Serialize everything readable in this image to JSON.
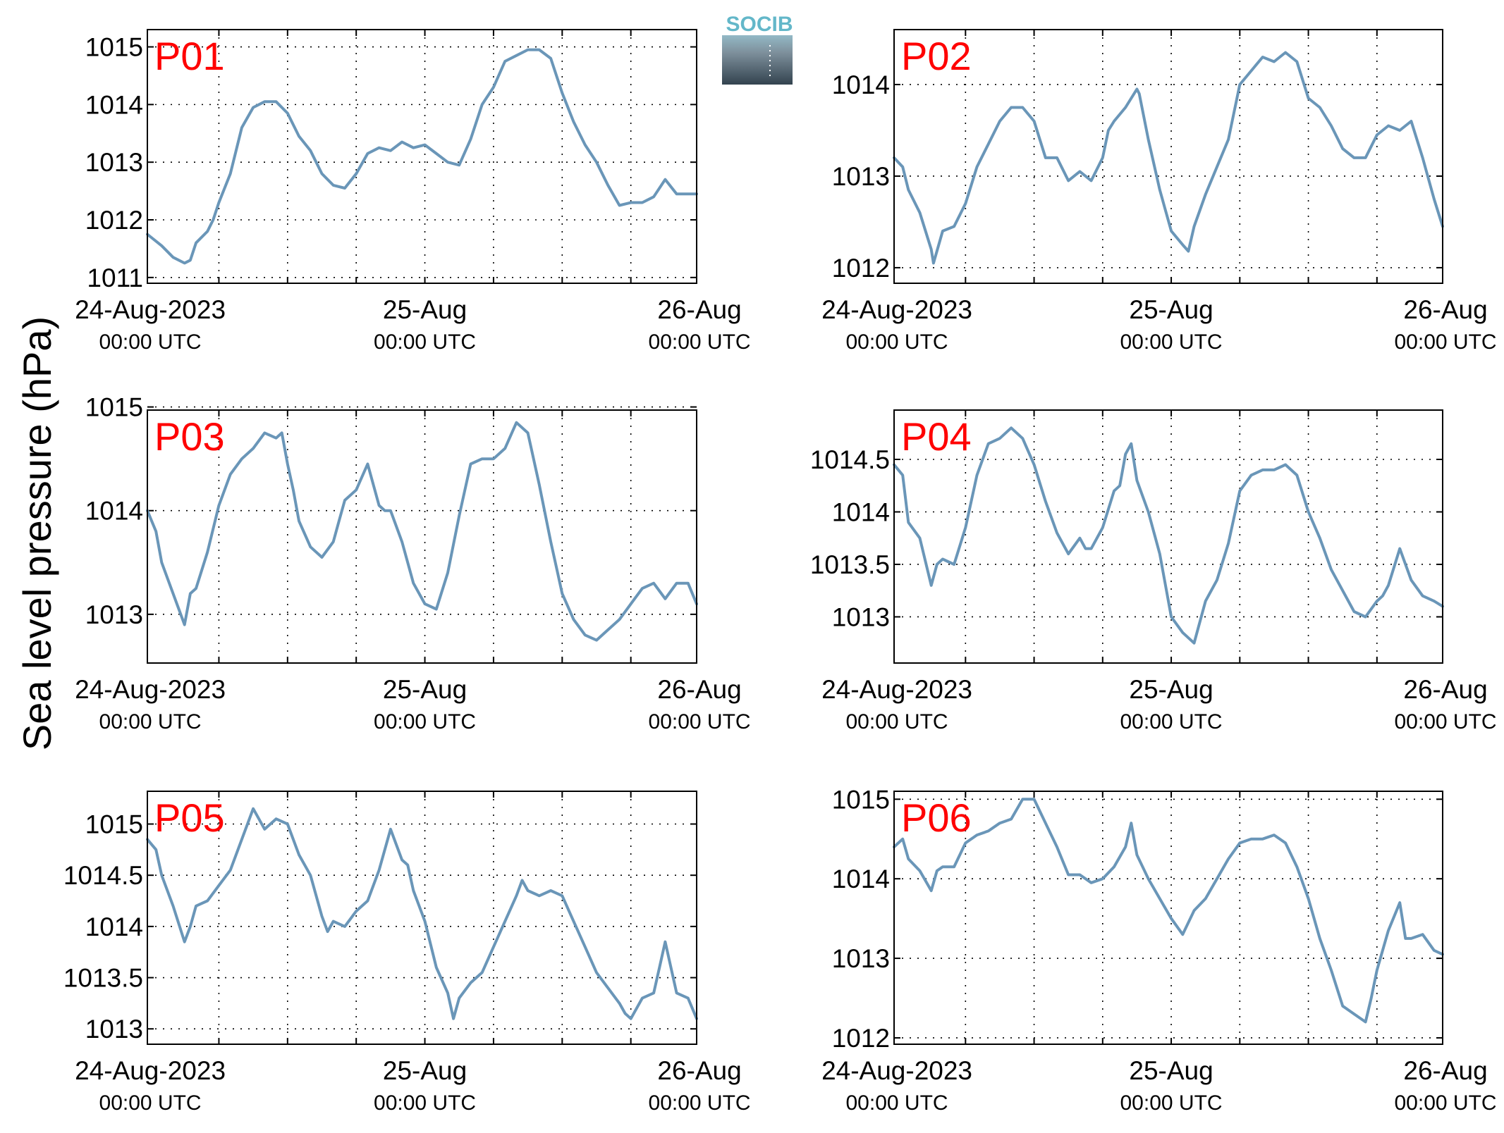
{
  "figure": {
    "ylabel": "Sea level pressure (hPa)",
    "title_color": "#ff0000",
    "series_color": "#6a96b8",
    "logo": {
      "text": "SOCIB",
      "text_color": "#63b7c9"
    }
  },
  "chart_data": [
    {
      "type": "line",
      "title": "P01",
      "ylim": [
        1010.9,
        1015.3
      ],
      "yticks": [
        1011,
        1012,
        1013,
        1014,
        1015
      ],
      "ytick_labels": [
        "1011",
        "1012",
        "1013",
        "1014",
        "1015"
      ],
      "xlim": [
        -0.25,
        47.75
      ],
      "xticks": [
        0,
        24,
        48
      ],
      "xtick_dates": [
        "24-Aug-2023",
        "25-Aug",
        "26-Aug"
      ],
      "xtick_times": [
        "00:00 UTC",
        "00:00 UTC",
        "00:00 UTC"
      ],
      "grid": true,
      "x": [
        -0.25,
        1,
        2,
        3,
        3.5,
        4,
        5,
        5.5,
        6,
        7,
        8,
        9,
        10,
        11,
        12,
        13,
        14,
        15,
        16,
        17,
        18,
        19,
        20,
        21,
        22,
        23,
        24,
        25,
        26,
        27,
        28,
        29,
        30,
        31,
        32,
        33,
        34,
        35,
        36,
        37,
        38,
        39,
        40,
        41,
        42,
        43,
        44,
        45,
        46,
        47,
        47.75
      ],
      "y": [
        1011.75,
        1011.55,
        1011.35,
        1011.25,
        1011.3,
        1011.6,
        1011.8,
        1012.0,
        1012.3,
        1012.8,
        1013.6,
        1013.95,
        1014.05,
        1014.05,
        1013.85,
        1013.45,
        1013.2,
        1012.8,
        1012.6,
        1012.55,
        1012.8,
        1013.15,
        1013.25,
        1013.2,
        1013.35,
        1013.25,
        1013.3,
        1013.15,
        1013.0,
        1012.95,
        1013.4,
        1014.0,
        1014.3,
        1014.75,
        1014.85,
        1014.95,
        1014.95,
        1014.8,
        1014.2,
        1013.7,
        1013.3,
        1013.0,
        1012.6,
        1012.25,
        1012.3,
        1012.3,
        1012.4,
        1012.7,
        1012.45,
        1012.45,
        1012.45
      ]
    },
    {
      "type": "line",
      "title": "P02",
      "ylim": [
        1011.83,
        1014.6
      ],
      "yticks": [
        1012,
        1013,
        1014
      ],
      "ytick_labels": [
        "1012",
        "1013",
        "1014"
      ],
      "xlim": [
        -0.25,
        47.75
      ],
      "xticks": [
        0,
        24,
        48
      ],
      "xtick_dates": [
        "24-Aug-2023",
        "25-Aug",
        "26-Aug"
      ],
      "xtick_times": [
        "00:00 UTC",
        "00:00 UTC",
        "00:00 UTC"
      ],
      "grid": true,
      "x": [
        -0.25,
        0.5,
        1,
        2,
        3,
        3.2,
        4,
        5,
        6,
        7,
        8,
        9,
        10,
        11,
        12,
        13,
        14,
        15,
        16,
        17,
        18,
        18.5,
        19,
        20,
        21,
        21.2,
        22,
        23,
        24,
        25,
        25.5,
        26,
        27,
        28,
        29,
        30,
        31,
        32,
        33,
        34,
        35,
        36,
        37,
        38,
        39,
        40,
        41,
        42,
        43,
        44,
        45,
        46,
        47,
        47.75
      ],
      "y": [
        1013.2,
        1013.1,
        1012.85,
        1012.6,
        1012.2,
        1012.05,
        1012.4,
        1012.45,
        1012.7,
        1013.1,
        1013.35,
        1013.6,
        1013.75,
        1013.75,
        1013.6,
        1013.2,
        1013.2,
        1012.95,
        1013.05,
        1012.95,
        1013.2,
        1013.5,
        1013.6,
        1013.75,
        1013.95,
        1013.9,
        1013.4,
        1012.85,
        1012.4,
        1012.25,
        1012.18,
        1012.45,
        1012.8,
        1013.1,
        1013.4,
        1014.0,
        1014.15,
        1014.3,
        1014.25,
        1014.35,
        1014.25,
        1013.85,
        1013.75,
        1013.55,
        1013.3,
        1013.2,
        1013.2,
        1013.45,
        1013.55,
        1013.5,
        1013.6,
        1013.2,
        1012.75,
        1012.45
      ]
    },
    {
      "type": "line",
      "title": "P03",
      "ylim": [
        1012.53,
        1014.97
      ],
      "yticks": [
        1013,
        1014,
        1015
      ],
      "ytick_labels": [
        "1013",
        "1014",
        "1015"
      ],
      "xlim": [
        -0.25,
        47.75
      ],
      "xticks": [
        0,
        24,
        48
      ],
      "xtick_dates": [
        "24-Aug-2023",
        "25-Aug",
        "26-Aug"
      ],
      "xtick_times": [
        "00:00 UTC",
        "00:00 UTC",
        "00:00 UTC"
      ],
      "grid": true,
      "x": [
        -0.25,
        0.5,
        1,
        2,
        3,
        3.5,
        4,
        5,
        6,
        7,
        8,
        9,
        10,
        11,
        11.5,
        12,
        12.5,
        13,
        14,
        15,
        16,
        16.5,
        17,
        18,
        19,
        20,
        20.5,
        21,
        22,
        23,
        24,
        25,
        26,
        27,
        28,
        29,
        30,
        31,
        32,
        33,
        34,
        35,
        35.5,
        36,
        37,
        38,
        39,
        40,
        41,
        42,
        43,
        44,
        45,
        46,
        47,
        47.75
      ],
      "y": [
        1014.0,
        1013.8,
        1013.5,
        1013.2,
        1012.9,
        1013.2,
        1013.25,
        1013.6,
        1014.05,
        1014.35,
        1014.5,
        1014.6,
        1014.75,
        1014.7,
        1014.75,
        1014.45,
        1014.2,
        1013.9,
        1013.65,
        1013.55,
        1013.7,
        1013.9,
        1014.1,
        1014.2,
        1014.45,
        1014.05,
        1014.0,
        1014.0,
        1013.7,
        1013.3,
        1013.1,
        1013.05,
        1013.4,
        1013.95,
        1014.45,
        1014.5,
        1014.5,
        1014.6,
        1014.85,
        1014.75,
        1014.25,
        1013.7,
        1013.45,
        1013.2,
        1012.95,
        1012.8,
        1012.75,
        1012.85,
        1012.95,
        1013.1,
        1013.25,
        1013.3,
        1013.15,
        1013.3,
        1013.3,
        1013.1
      ]
    },
    {
      "type": "line",
      "title": "P04",
      "ylim": [
        1012.56,
        1014.97
      ],
      "yticks": [
        1013,
        1013.5,
        1014,
        1014.5
      ],
      "ytick_labels": [
        "1013",
        "1013.5",
        "1014",
        "1014.5"
      ],
      "xlim": [
        -0.25,
        47.75
      ],
      "xticks": [
        0,
        24,
        48
      ],
      "xtick_dates": [
        "24-Aug-2023",
        "25-Aug",
        "26-Aug"
      ],
      "xtick_times": [
        "00:00 UTC",
        "00:00 UTC",
        "00:00 UTC"
      ],
      "grid": true,
      "x": [
        -0.25,
        0.5,
        1,
        2,
        3,
        3.5,
        4,
        5,
        6,
        7,
        8,
        9,
        10,
        11,
        12,
        13,
        14,
        15,
        16,
        16.5,
        17,
        18,
        19,
        19.5,
        20,
        20.5,
        21,
        22,
        23,
        24,
        25,
        26,
        27,
        28,
        29,
        30,
        31,
        32,
        33,
        34,
        35,
        36,
        37,
        38,
        39,
        40,
        41,
        42,
        42.5,
        43,
        44,
        45,
        46,
        47,
        47.75
      ],
      "y": [
        1014.45,
        1014.35,
        1013.9,
        1013.75,
        1013.3,
        1013.5,
        1013.55,
        1013.5,
        1013.85,
        1014.35,
        1014.65,
        1014.7,
        1014.8,
        1014.7,
        1014.45,
        1014.1,
        1013.8,
        1013.6,
        1013.75,
        1013.65,
        1013.65,
        1013.85,
        1014.2,
        1014.25,
        1014.55,
        1014.65,
        1014.3,
        1014.0,
        1013.6,
        1013.0,
        1012.85,
        1012.75,
        1013.15,
        1013.35,
        1013.7,
        1014.2,
        1014.35,
        1014.4,
        1014.4,
        1014.45,
        1014.35,
        1014.0,
        1013.75,
        1013.45,
        1013.25,
        1013.05,
        1013.0,
        1013.15,
        1013.2,
        1013.3,
        1013.65,
        1013.35,
        1013.2,
        1013.15,
        1013.1
      ]
    },
    {
      "type": "line",
      "title": "P05",
      "ylim": [
        1012.85,
        1015.32
      ],
      "yticks": [
        1013,
        1013.5,
        1014,
        1014.5,
        1015
      ],
      "ytick_labels": [
        "1013",
        "1013.5",
        "1014",
        "1014.5",
        "1015"
      ],
      "xlim": [
        -0.25,
        47.75
      ],
      "xticks": [
        0,
        24,
        48
      ],
      "xtick_dates": [
        "24-Aug-2023",
        "25-Aug",
        "26-Aug"
      ],
      "xtick_times": [
        "00:00 UTC",
        "00:00 UTC",
        "00:00 UTC"
      ],
      "grid": true,
      "x": [
        -0.25,
        0.5,
        1,
        2,
        3,
        3.5,
        4,
        5,
        6,
        7,
        8,
        9,
        10,
        11,
        12,
        13,
        14,
        15,
        15.5,
        16,
        17,
        18,
        19,
        20,
        21,
        22,
        22.5,
        23,
        24,
        25,
        26,
        26.5,
        27,
        28,
        29,
        30,
        31,
        32,
        32.5,
        33,
        34,
        35,
        36,
        37,
        38,
        39,
        40,
        41,
        41.5,
        42,
        43,
        44,
        44.5,
        45,
        46,
        47,
        47.75
      ],
      "y": [
        1014.85,
        1014.75,
        1014.5,
        1014.2,
        1013.85,
        1014.0,
        1014.2,
        1014.25,
        1014.4,
        1014.55,
        1014.85,
        1015.15,
        1014.95,
        1015.05,
        1015.0,
        1014.7,
        1014.5,
        1014.1,
        1013.95,
        1014.05,
        1014.0,
        1014.15,
        1014.25,
        1014.55,
        1014.95,
        1014.65,
        1014.6,
        1014.35,
        1014.05,
        1013.6,
        1013.35,
        1013.1,
        1013.3,
        1013.45,
        1013.55,
        1013.8,
        1014.05,
        1014.3,
        1014.45,
        1014.35,
        1014.3,
        1014.35,
        1014.3,
        1014.05,
        1013.8,
        1013.55,
        1013.4,
        1013.25,
        1013.15,
        1013.1,
        1013.3,
        1013.35,
        1013.6,
        1013.85,
        1013.35,
        1013.3,
        1013.1
      ]
    },
    {
      "type": "line",
      "title": "P06",
      "ylim": [
        1011.92,
        1015.1
      ],
      "yticks": [
        1012,
        1013,
        1014,
        1015
      ],
      "ytick_labels": [
        "1012",
        "1013",
        "1014",
        "1015"
      ],
      "xlim": [
        -0.25,
        47.75
      ],
      "xticks": [
        0,
        24,
        48
      ],
      "xtick_dates": [
        "24-Aug-2023",
        "25-Aug",
        "26-Aug"
      ],
      "xtick_times": [
        "00:00 UTC",
        "00:00 UTC",
        "00:00 UTC"
      ],
      "grid": true,
      "x": [
        -0.25,
        0.5,
        1,
        2,
        3,
        3.5,
        4,
        5,
        6,
        7,
        8,
        9,
        10,
        11,
        12,
        13,
        14,
        15,
        16,
        17,
        18,
        19,
        20,
        20.5,
        21,
        22,
        23,
        24,
        25,
        26,
        27,
        28,
        29,
        30,
        31,
        32,
        33,
        34,
        35,
        36,
        37,
        38,
        39,
        40,
        41,
        41.5,
        42,
        43,
        44,
        44.5,
        45,
        46,
        47,
        47.75
      ],
      "y": [
        1014.4,
        1014.5,
        1014.25,
        1014.1,
        1013.85,
        1014.1,
        1014.15,
        1014.15,
        1014.45,
        1014.55,
        1014.6,
        1014.7,
        1014.75,
        1015.0,
        1015.0,
        1014.7,
        1014.4,
        1014.05,
        1014.05,
        1013.95,
        1014.0,
        1014.15,
        1014.4,
        1014.7,
        1014.3,
        1014.0,
        1013.75,
        1013.5,
        1013.3,
        1013.6,
        1013.75,
        1014.0,
        1014.25,
        1014.45,
        1014.5,
        1014.5,
        1014.55,
        1014.45,
        1014.15,
        1013.75,
        1013.25,
        1012.85,
        1012.4,
        1012.3,
        1012.2,
        1012.5,
        1012.85,
        1013.35,
        1013.7,
        1013.25,
        1013.25,
        1013.3,
        1013.1,
        1013.05
      ]
    }
  ]
}
